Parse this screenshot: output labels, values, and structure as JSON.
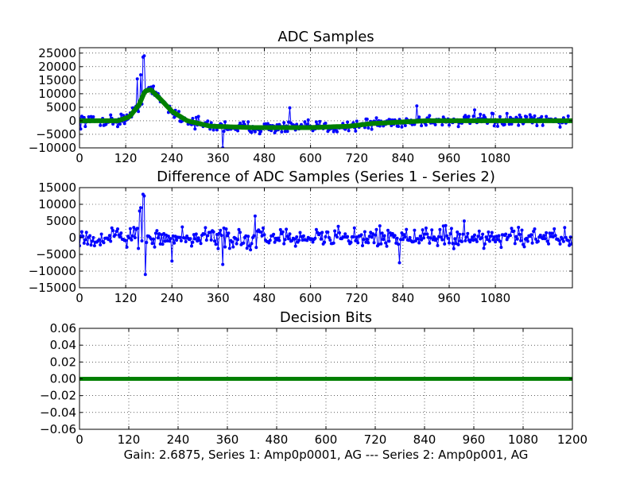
{
  "colors": {
    "series1": "#0000ff",
    "series2": "#007f00",
    "background": "#ffffff",
    "axis": "#000000"
  },
  "caption": "Gain: 2.6875, Series 1: Amp0p0001, AG --- Series 2: Amp0p001, AG",
  "chart_data": [
    {
      "id": "adc",
      "type": "line",
      "title": "ADC Samples",
      "xlim": [
        0,
        1280
      ],
      "ylim": [
        -10000,
        27000
      ],
      "xticks": [
        0,
        120,
        240,
        360,
        480,
        600,
        720,
        840,
        960,
        1080
      ],
      "xtick_labels": [
        "0",
        "120",
        "240",
        "360",
        "480",
        "600",
        "720",
        "840",
        "960",
        "1080"
      ],
      "yticks": [
        -10000,
        -5000,
        0,
        5000,
        10000,
        15000,
        20000,
        25000
      ],
      "ytick_labels": [
        "−10000",
        "−5000",
        "0",
        "5000",
        "10000",
        "15000",
        "20000",
        "25000"
      ],
      "grid": true,
      "series": [
        {
          "name": "Series 1",
          "style": "markers-line",
          "noise_amplitude": 1800,
          "spikes": [
            [
              165,
              23500
            ],
            [
              167,
              24000
            ],
            [
              158,
              17000
            ],
            [
              150,
              15500
            ],
            [
              372,
              -10000
            ],
            [
              875,
              5500
            ],
            [
              545,
              4800
            ],
            [
              1025,
              4000
            ]
          ],
          "envelope": [
            [
              0,
              0
            ],
            [
              100,
              0
            ],
            [
              130,
              1500
            ],
            [
              155,
              6000
            ],
            [
              170,
              11000
            ],
            [
              185,
              11500
            ],
            [
              210,
              8000
            ],
            [
              240,
              3500
            ],
            [
              280,
              0
            ],
            [
              340,
              -2000
            ],
            [
              450,
              -2500
            ],
            [
              600,
              -2500
            ],
            [
              700,
              -2000
            ],
            [
              760,
              -1000
            ],
            [
              900,
              0
            ],
            [
              1280,
              0
            ]
          ]
        },
        {
          "name": "Series 2",
          "style": "thick-line",
          "envelope": [
            [
              0,
              0
            ],
            [
              100,
              0
            ],
            [
              130,
              1500
            ],
            [
              155,
              6000
            ],
            [
              170,
              11000
            ],
            [
              185,
              11500
            ],
            [
              210,
              8000
            ],
            [
              240,
              3500
            ],
            [
              280,
              0
            ],
            [
              340,
              -2000
            ],
            [
              450,
              -2500
            ],
            [
              600,
              -2500
            ],
            [
              700,
              -2000
            ],
            [
              760,
              -1000
            ],
            [
              900,
              0
            ],
            [
              1280,
              0
            ]
          ]
        }
      ]
    },
    {
      "id": "diff",
      "type": "line",
      "title": "Difference of ADC Samples (Series 1 - Series 2)",
      "xlim": [
        0,
        1280
      ],
      "ylim": [
        -15000,
        15000
      ],
      "xticks": [
        0,
        120,
        240,
        360,
        480,
        600,
        720,
        840,
        960,
        1080
      ],
      "xtick_labels": [
        "0",
        "120",
        "240",
        "360",
        "480",
        "600",
        "720",
        "840",
        "960",
        "1080"
      ],
      "yticks": [
        -15000,
        -10000,
        -5000,
        0,
        5000,
        10000,
        15000
      ],
      "ytick_labels": [
        "−15000",
        "−10000",
        "−5000",
        "0",
        "5000",
        "10000",
        "15000"
      ],
      "grid": true,
      "series": [
        {
          "name": "Series 1 - Series 2",
          "style": "markers-line",
          "noise_amplitude": 2300,
          "spikes": [
            [
              165,
              13000
            ],
            [
              167,
              12500
            ],
            [
              170,
              -12500
            ],
            [
              160,
              9000
            ],
            [
              155,
              8000
            ],
            [
              172,
              -11000
            ],
            [
              372,
              -8000
            ],
            [
              240,
              -7000
            ],
            [
              830,
              -7500
            ],
            [
              455,
              6500
            ],
            [
              1000,
              5000
            ]
          ],
          "envelope": [
            [
              0,
              0
            ],
            [
              1280,
              0
            ]
          ]
        }
      ]
    },
    {
      "id": "bits",
      "type": "line",
      "title": "Decision Bits",
      "xlim": [
        0,
        1200
      ],
      "ylim": [
        -0.06,
        0.06
      ],
      "xticks": [
        0,
        120,
        240,
        360,
        480,
        600,
        720,
        840,
        960,
        1080,
        1200
      ],
      "xtick_labels": [
        "0",
        "120",
        "240",
        "360",
        "480",
        "600",
        "720",
        "840",
        "960",
        "1080",
        "1200"
      ],
      "yticks": [
        -0.06,
        -0.04,
        -0.02,
        0.0,
        0.02,
        0.04,
        0.06
      ],
      "ytick_labels": [
        "−0.06",
        "−0.04",
        "−0.02",
        "0.00",
        "0.02",
        "0.04",
        "0.06"
      ],
      "grid": true,
      "series": [
        {
          "name": "Decision Bits",
          "style": "thick-line",
          "x": [
            0,
            1200
          ],
          "y": [
            0,
            0
          ]
        }
      ]
    }
  ]
}
